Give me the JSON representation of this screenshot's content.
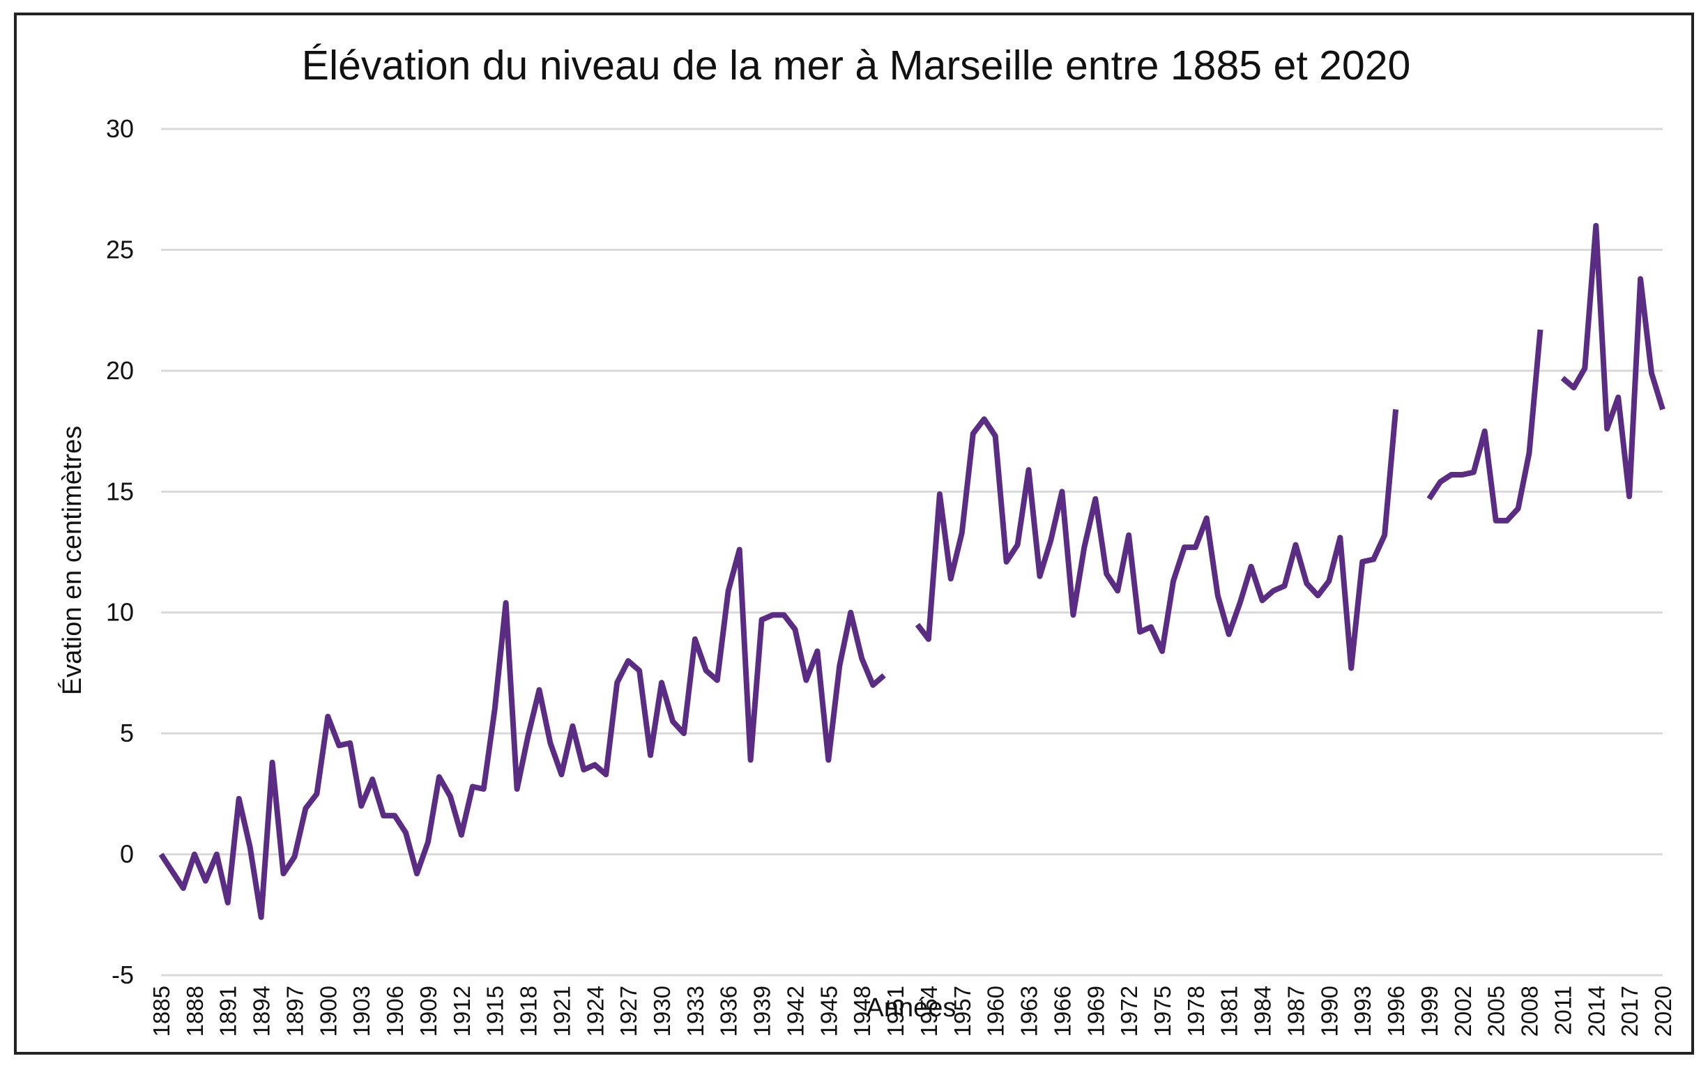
{
  "chart_data": {
    "type": "line",
    "title": "Élévation du niveau de la mer à Marseille entre 1885 et 2020",
    "xlabel": "Années",
    "ylabel": "Évation en centimètres",
    "ylim": [
      -5,
      30
    ],
    "yticks": [
      "-5",
      "0",
      "5",
      "10",
      "15",
      "20",
      "25",
      "30"
    ],
    "xlim": [
      1885,
      2020
    ],
    "xtick_step": 3,
    "grid": "horizontal",
    "legend": "none",
    "color": "#5b2c83",
    "series": [
      {
        "points": [
          [
            1885,
            0.0
          ],
          [
            1886,
            -0.7
          ],
          [
            1887,
            -1.4
          ],
          [
            1888,
            0.0
          ],
          [
            1889,
            -1.1
          ],
          [
            1890,
            0.0
          ],
          [
            1891,
            -2.0
          ],
          [
            1892,
            2.3
          ],
          [
            1893,
            0.3
          ],
          [
            1894,
            -2.6
          ],
          [
            1895,
            3.8
          ],
          [
            1896,
            -0.8
          ],
          [
            1897,
            -0.1
          ],
          [
            1898,
            1.9
          ],
          [
            1899,
            2.5
          ],
          [
            1900,
            5.7
          ],
          [
            1901,
            4.5
          ],
          [
            1902,
            4.6
          ],
          [
            1903,
            2.0
          ],
          [
            1904,
            3.1
          ],
          [
            1905,
            1.6
          ],
          [
            1906,
            1.6
          ],
          [
            1907,
            0.9
          ],
          [
            1908,
            -0.8
          ],
          [
            1909,
            0.5
          ],
          [
            1910,
            3.2
          ],
          [
            1911,
            2.4
          ],
          [
            1912,
            0.8
          ],
          [
            1913,
            2.8
          ],
          [
            1914,
            2.7
          ],
          [
            1915,
            6.0
          ],
          [
            1916,
            10.4
          ],
          [
            1917,
            2.7
          ],
          [
            1918,
            4.9
          ],
          [
            1919,
            6.8
          ],
          [
            1920,
            4.6
          ],
          [
            1921,
            3.3
          ],
          [
            1922,
            5.3
          ],
          [
            1923,
            3.5
          ],
          [
            1924,
            3.7
          ],
          [
            1925,
            3.3
          ],
          [
            1926,
            7.1
          ],
          [
            1927,
            8.0
          ],
          [
            1928,
            7.6
          ],
          [
            1929,
            4.1
          ],
          [
            1930,
            7.1
          ],
          [
            1931,
            5.5
          ],
          [
            1932,
            5.0
          ],
          [
            1933,
            8.9
          ],
          [
            1934,
            7.6
          ],
          [
            1935,
            7.2
          ],
          [
            1936,
            10.9
          ],
          [
            1937,
            12.6
          ],
          [
            1938,
            3.9
          ],
          [
            1939,
            9.7
          ],
          [
            1940,
            9.9
          ],
          [
            1941,
            9.9
          ],
          [
            1942,
            9.3
          ],
          [
            1943,
            7.2
          ],
          [
            1944,
            8.4
          ],
          [
            1945,
            3.9
          ],
          [
            1946,
            7.8
          ],
          [
            1947,
            10.0
          ],
          [
            1948,
            8.1
          ],
          [
            1949,
            7.0
          ],
          [
            1950,
            7.4
          ]
        ]
      },
      {
        "points": [
          [
            1953,
            9.5
          ],
          [
            1954,
            8.9
          ],
          [
            1955,
            14.9
          ],
          [
            1956,
            11.4
          ],
          [
            1957,
            13.3
          ],
          [
            1958,
            17.4
          ],
          [
            1959,
            18.0
          ],
          [
            1960,
            17.3
          ],
          [
            1961,
            12.1
          ],
          [
            1962,
            12.8
          ],
          [
            1963,
            15.9
          ],
          [
            1964,
            11.5
          ],
          [
            1965,
            13.0
          ],
          [
            1966,
            15.0
          ],
          [
            1967,
            9.9
          ],
          [
            1968,
            12.7
          ],
          [
            1969,
            14.7
          ],
          [
            1970,
            11.6
          ],
          [
            1971,
            10.9
          ],
          [
            1972,
            13.2
          ],
          [
            1973,
            9.2
          ],
          [
            1974,
            9.4
          ],
          [
            1975,
            8.4
          ],
          [
            1976,
            11.3
          ],
          [
            1977,
            12.7
          ],
          [
            1978,
            12.7
          ],
          [
            1979,
            13.9
          ],
          [
            1980,
            10.7
          ],
          [
            1981,
            9.1
          ],
          [
            1982,
            10.4
          ],
          [
            1983,
            11.9
          ],
          [
            1984,
            10.5
          ],
          [
            1985,
            10.9
          ],
          [
            1986,
            11.1
          ],
          [
            1987,
            12.8
          ],
          [
            1988,
            11.2
          ],
          [
            1989,
            10.7
          ],
          [
            1990,
            11.3
          ],
          [
            1991,
            13.1
          ],
          [
            1992,
            7.7
          ],
          [
            1993,
            12.1
          ],
          [
            1994,
            12.2
          ],
          [
            1995,
            13.2
          ],
          [
            1996,
            18.4
          ]
        ]
      },
      {
        "points": [
          [
            1999,
            14.7
          ],
          [
            2000,
            15.4
          ],
          [
            2001,
            15.7
          ],
          [
            2002,
            15.7
          ],
          [
            2003,
            15.8
          ],
          [
            2004,
            17.5
          ],
          [
            2005,
            13.8
          ],
          [
            2006,
            13.8
          ],
          [
            2007,
            14.3
          ],
          [
            2008,
            16.6
          ],
          [
            2009,
            21.7
          ]
        ]
      },
      {
        "points": [
          [
            2011,
            19.7
          ],
          [
            2012,
            19.3
          ],
          [
            2013,
            20.1
          ],
          [
            2014,
            26.0
          ],
          [
            2015,
            17.6
          ],
          [
            2016,
            18.9
          ],
          [
            2017,
            14.8
          ],
          [
            2018,
            23.8
          ],
          [
            2019,
            19.9
          ],
          [
            2020,
            18.4
          ]
        ]
      }
    ]
  }
}
